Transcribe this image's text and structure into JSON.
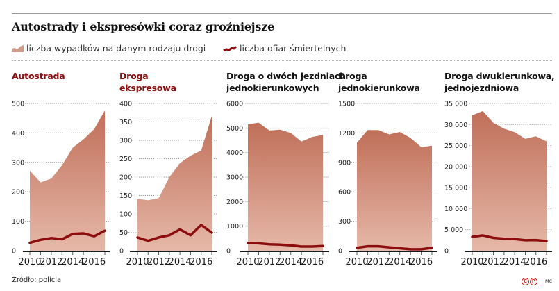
{
  "header": {
    "title": "Autostrady i ekspresówki coraz groźniejsze"
  },
  "legend": {
    "accidents_label": "liczba wypadków na danym rodzaju drogi",
    "deaths_label": "liczba ofiar śmiertelnych",
    "accidents_icon": "area-chart-icon",
    "deaths_icon": "line-chart-icon"
  },
  "colors": {
    "area_top": "#c0705a",
    "area_bottom": "#e4b5a5",
    "line": "#8c0d0d",
    "title_red": "#8c0d0d",
    "grid": "#9a9a9a",
    "axis": "#1a1a1a"
  },
  "footer": {
    "source": "Źródło: policja",
    "copyright_c": "C",
    "copyright_p": "P",
    "author": "MC"
  },
  "chart_data": [
    {
      "type": "area",
      "title": "Autostrada",
      "title_style": "red",
      "x": [
        2010,
        2011,
        2012,
        2013,
        2014,
        2015,
        2016,
        2017
      ],
      "xtick_labels": [
        "2010",
        "2012",
        "2014",
        "2016"
      ],
      "ylim": [
        0,
        500
      ],
      "yticks": [
        0,
        100,
        200,
        300,
        400,
        500
      ],
      "ytick_labels": [
        "0",
        "100",
        "200",
        "300",
        "400",
        "500"
      ],
      "grid": true,
      "series": [
        {
          "name": "liczba wypadków na danym rodzaju drogi",
          "type": "area",
          "values": [
            272,
            232,
            245,
            290,
            350,
            378,
            413,
            476
          ]
        },
        {
          "name": "liczba ofiar śmiertelnych",
          "type": "line",
          "values": [
            27,
            37,
            43,
            39,
            57,
            59,
            49,
            68
          ]
        }
      ]
    },
    {
      "type": "area",
      "title": "Droga ekspresowa",
      "title_lines": [
        "Droga",
        "ekspresowa"
      ],
      "title_style": "red",
      "x": [
        2010,
        2011,
        2012,
        2013,
        2014,
        2015,
        2016,
        2017
      ],
      "xtick_labels": [
        "2010",
        "2012",
        "2014",
        "2016"
      ],
      "ylim": [
        0,
        400
      ],
      "yticks": [
        0,
        50,
        100,
        150,
        200,
        250,
        300,
        350,
        400
      ],
      "ytick_labels": [
        "0",
        "50",
        "100",
        "150",
        "200",
        "250",
        "300",
        "350",
        "400"
      ],
      "grid": true,
      "series": [
        {
          "name": "liczba wypadków na danym rodzaju drogi",
          "type": "area",
          "values": [
            141,
            137,
            143,
            200,
            238,
            258,
            272,
            366
          ]
        },
        {
          "name": "liczba ofiar śmiertelnych",
          "type": "line",
          "values": [
            36,
            27,
            36,
            42,
            58,
            42,
            70,
            49
          ]
        }
      ]
    },
    {
      "type": "area",
      "title": "Droga o dwóch jezdniach jednokierunkowych",
      "title_lines": [
        "Droga o dwóch jezdniach",
        "jednokierunkowych"
      ],
      "title_style": "dark",
      "x": [
        2010,
        2011,
        2012,
        2013,
        2014,
        2015,
        2016,
        2017
      ],
      "xtick_labels": [
        "2010",
        "2012",
        "2014",
        "2016"
      ],
      "ylim": [
        0,
        6000
      ],
      "yticks": [
        0,
        1000,
        2000,
        3000,
        4000,
        5000,
        6000
      ],
      "ytick_labels": [
        "0",
        "1000",
        "2000",
        "3000",
        "4000",
        "5000",
        "6000"
      ],
      "grid": true,
      "series": [
        {
          "name": "liczba wypadków na danym rodzaju drogi",
          "type": "area",
          "values": [
            5150,
            5220,
            4900,
            4930,
            4800,
            4450,
            4640,
            4720
          ]
        },
        {
          "name": "liczba ofiar śmiertelnych",
          "type": "line",
          "values": [
            310,
            300,
            260,
            250,
            220,
            170,
            170,
            190
          ]
        }
      ]
    },
    {
      "type": "area",
      "title": "Droga jednokierunkowa",
      "title_lines": [
        "Droga",
        "jednokierunkowa"
      ],
      "title_style": "dark",
      "x": [
        2010,
        2011,
        2012,
        2013,
        2014,
        2015,
        2016,
        2017
      ],
      "xtick_labels": [
        "2010",
        "2012",
        "2014",
        "2016"
      ],
      "ylim": [
        0,
        1500
      ],
      "yticks": [
        0,
        300,
        600,
        900,
        1200,
        1500
      ],
      "ytick_labels": [
        "0",
        "300",
        "600",
        "900",
        "1200",
        "1500"
      ],
      "grid": true,
      "series": [
        {
          "name": "liczba wypadków na danym rodzaju drogi",
          "type": "area",
          "values": [
            1100,
            1230,
            1230,
            1185,
            1210,
            1150,
            1055,
            1070
          ]
        },
        {
          "name": "liczba ofiar śmiertelnych",
          "type": "line",
          "values": [
            30,
            45,
            45,
            35,
            25,
            15,
            15,
            30
          ]
        }
      ]
    },
    {
      "type": "area",
      "title": "Droga dwukierunkowa, jednojezdniowa",
      "title_lines": [
        "Droga dwukierunkowa,",
        "jednojezdniowa"
      ],
      "title_style": "dark",
      "x": [
        2010,
        2011,
        2012,
        2013,
        2014,
        2015,
        2016,
        2017
      ],
      "xtick_labels": [
        "2010",
        "2012",
        "2014",
        "2016"
      ],
      "ylim": [
        0,
        35000
      ],
      "yticks": [
        0,
        5000,
        10000,
        15000,
        20000,
        25000,
        30000,
        35000
      ],
      "ytick_labels": [
        "0",
        "5 000",
        "10 000",
        "15 000",
        "20 000",
        "25 000",
        "30 000",
        "35 000"
      ],
      "grid": true,
      "series": [
        {
          "name": "liczba wypadków na danym rodzaju drogi",
          "type": "area",
          "values": [
            32200,
            33200,
            30400,
            29000,
            28200,
            26600,
            27200,
            26000
          ]
        },
        {
          "name": "liczba ofiar śmiertelnych",
          "type": "line",
          "values": [
            3300,
            3650,
            3050,
            2850,
            2750,
            2500,
            2550,
            2300
          ]
        }
      ]
    }
  ]
}
